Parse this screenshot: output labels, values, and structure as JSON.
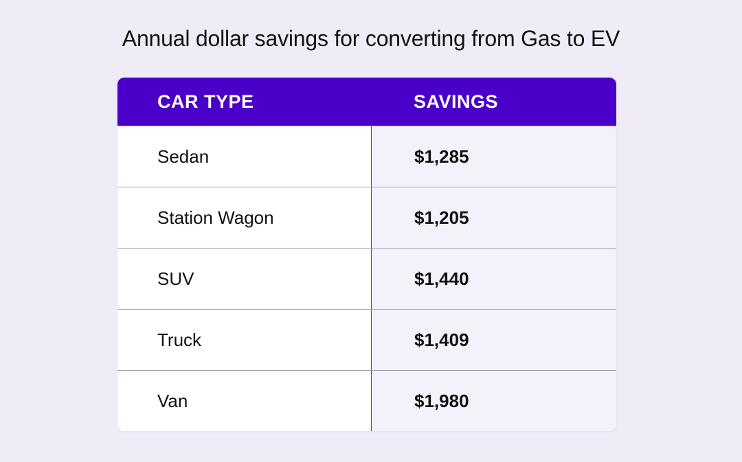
{
  "title": "Annual dollar savings for converting from Gas to EV",
  "table": {
    "header": [
      "CAR TYPE",
      "SAVINGS"
    ],
    "rows": [
      [
        "Sedan",
        "$1,285"
      ],
      [
        "Station Wagon",
        "$1,205"
      ],
      [
        "SUV",
        "$1,440"
      ],
      [
        "Truck",
        "$1,409"
      ],
      [
        "Van",
        "$1,980"
      ]
    ]
  }
}
